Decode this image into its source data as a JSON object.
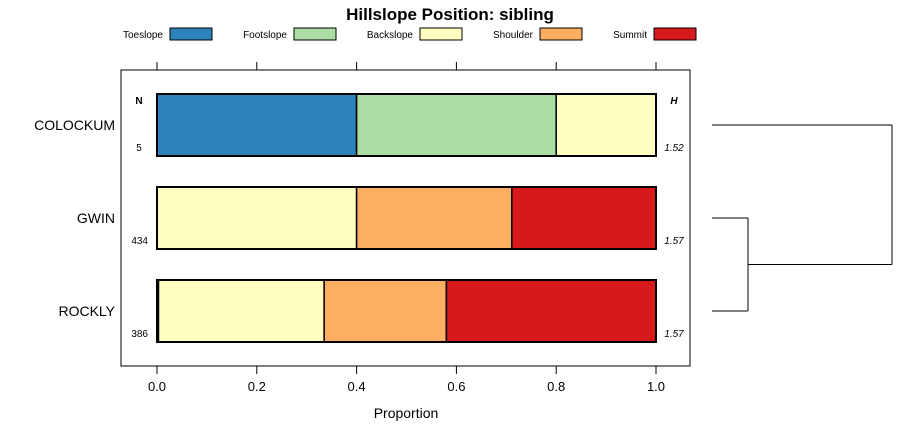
{
  "chart_data": {
    "type": "bar",
    "orientation": "horizontal",
    "stacked": true,
    "title": "Hillslope Position: sibling",
    "xlabel": "Proportion",
    "ylabel": "",
    "xlim": [
      0,
      1
    ],
    "x_ticks": [
      "0.0",
      "0.2",
      "0.4",
      "0.6",
      "0.8",
      "1.0"
    ],
    "x_tick_values": [
      0,
      0.2,
      0.4,
      0.6,
      0.8,
      1.0
    ],
    "legend_position": "top",
    "categories": [
      "COLOCKUM",
      "GWIN",
      "ROCKLY"
    ],
    "series": [
      {
        "name": "Toeslope",
        "color": "#2b83ba",
        "values": [
          0.4,
          0.0,
          0.003
        ]
      },
      {
        "name": "Footslope",
        "color": "#abdda4",
        "values": [
          0.4,
          0.0,
          0.0
        ]
      },
      {
        "name": "Backslope",
        "color": "#ffffbf",
        "values": [
          0.2,
          0.4,
          0.332
        ]
      },
      {
        "name": "Shoulder",
        "color": "#fdae61",
        "values": [
          0.0,
          0.311,
          0.245
        ]
      },
      {
        "name": "Summit",
        "color": "#d7191c",
        "values": [
          0.0,
          0.289,
          0.42
        ]
      }
    ],
    "n_header": "N",
    "h_header": "H",
    "counts": [
      "5",
      "434",
      "386"
    ],
    "entropy": [
      "1.52",
      "1.57",
      "1.57"
    ],
    "dendrogram": {
      "merges": [
        [
          "GWIN",
          "ROCKLY"
        ],
        [
          "COLOCKUM",
          "GWIN+ROCKLY"
        ]
      ],
      "heights": [
        0.2,
        1.0
      ]
    }
  }
}
